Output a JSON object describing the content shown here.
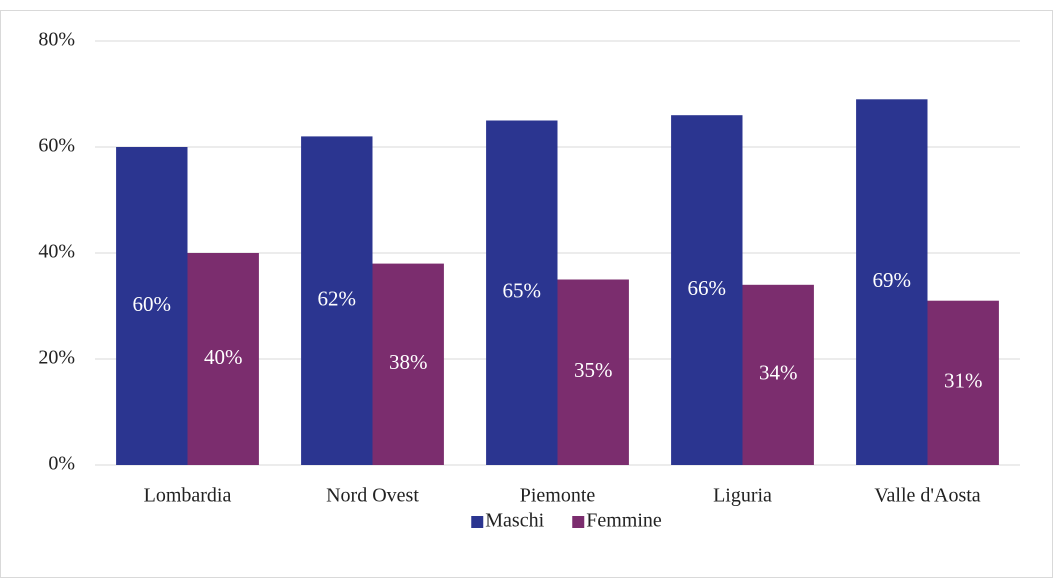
{
  "chart_data": {
    "type": "bar",
    "categories": [
      "Lombardia",
      "Nord Ovest",
      "Piemonte",
      "Liguria",
      "Valle d'Aosta"
    ],
    "series": [
      {
        "name": "Maschi",
        "color": "#2b3590",
        "values": [
          60,
          62,
          65,
          66,
          69
        ],
        "value_labels": [
          "60%",
          "62%",
          "65%",
          "66%",
          "69%"
        ]
      },
      {
        "name": "Femmine",
        "color": "#7b2d6e",
        "values": [
          40,
          38,
          35,
          34,
          31
        ],
        "value_labels": [
          "40%",
          "38%",
          "35%",
          "34%",
          "31%"
        ]
      }
    ],
    "ylim": [
      0,
      80
    ],
    "yticks": [
      {
        "value": 0,
        "label": "0%"
      },
      {
        "value": 20,
        "label": "20%"
      },
      {
        "value": 40,
        "label": "40%"
      },
      {
        "value": 60,
        "label": "60%"
      },
      {
        "value": 80,
        "label": "80%"
      }
    ],
    "grid": true,
    "legend": "bottom"
  }
}
